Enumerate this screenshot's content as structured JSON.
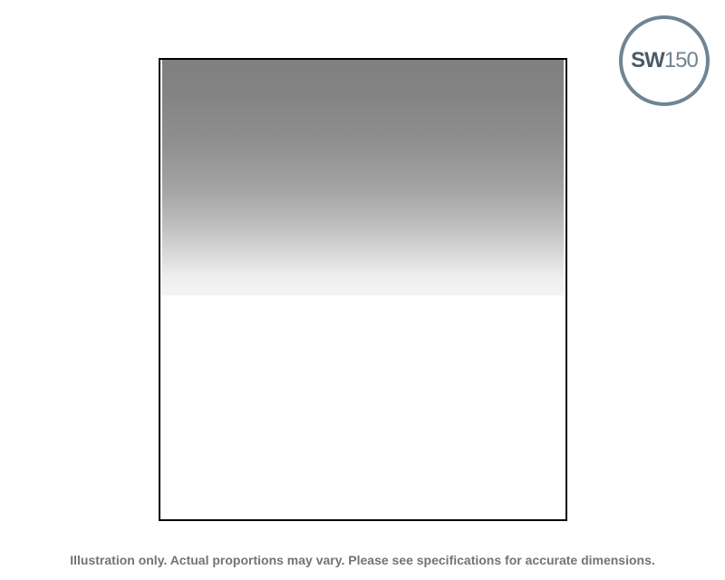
{
  "product": {
    "badge_prefix": "SW",
    "badge_number": "150",
    "badge_color": "#6f8593",
    "filter_type": "graduated neutral density",
    "frame_color": "#000000",
    "gradient_dark_color": "#7f7f7f",
    "gradient_light_color": "#f4f4f4"
  },
  "caption": {
    "text": "Illustration only. Actual proportions may vary. Please see specifications for accurate dimensions."
  }
}
